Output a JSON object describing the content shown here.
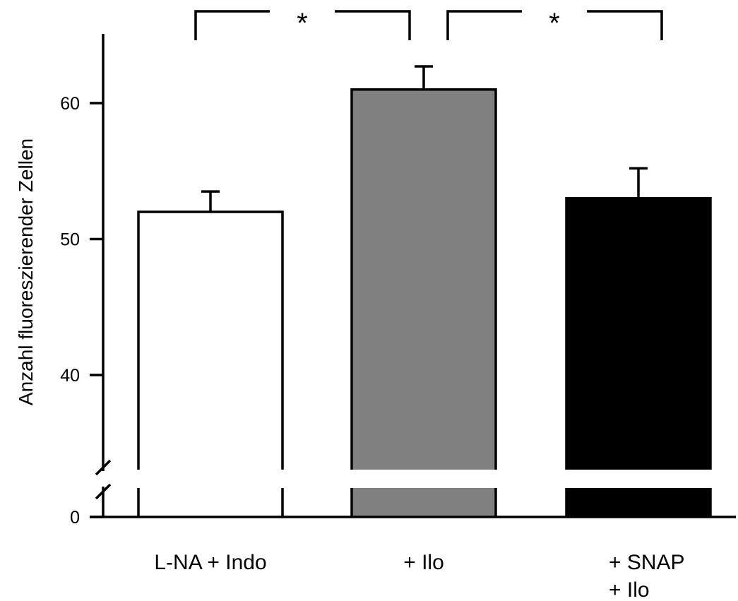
{
  "chart_data": {
    "type": "bar",
    "ylabel": "Anzahl fluoreszierender Zellen",
    "y_axis": {
      "break": true,
      "lower_segment": [
        0,
        0
      ],
      "upper_segment": [
        33.5,
        65
      ],
      "ticks": [
        {
          "value": 0,
          "label": "0"
        },
        {
          "value": 40,
          "label": "40"
        },
        {
          "value": 50,
          "label": "50"
        },
        {
          "value": 60,
          "label": "60"
        }
      ]
    },
    "categories": [
      {
        "lines": [
          "L-NA + Indo"
        ]
      },
      {
        "lines": [
          "+ Ilo"
        ]
      },
      {
        "lines": [
          "+ SNAP",
          "+ Ilo"
        ]
      }
    ],
    "values": [
      52,
      61,
      53
    ],
    "errors": [
      1.5,
      1.7,
      2.2
    ],
    "colors": [
      "#ffffff",
      "#808080",
      "#000000"
    ],
    "significance": [
      {
        "from": 0,
        "to": 1,
        "label": "*"
      },
      {
        "from": 1,
        "to": 2,
        "label": "*"
      }
    ],
    "grid": false,
    "legend": "none"
  }
}
